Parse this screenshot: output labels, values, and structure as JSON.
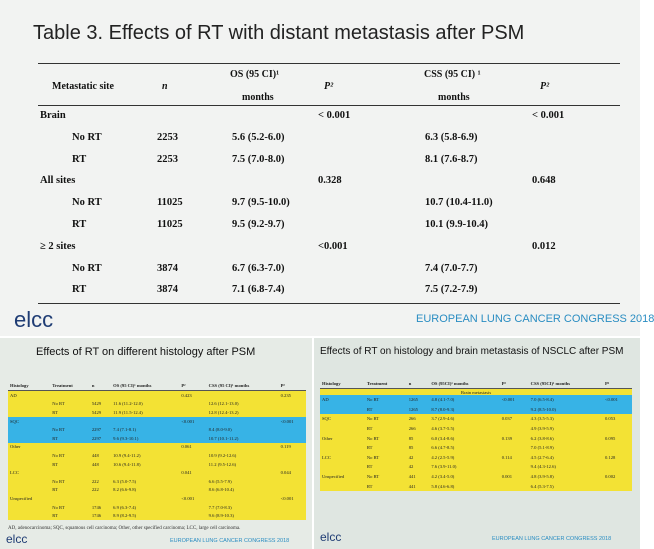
{
  "top": {
    "title": "Table 3. Effects of RT with distant metastasis after PSM",
    "headers": {
      "site": "Metastatic site",
      "n": "n",
      "os": "OS (95 CI)¹",
      "os_unit": "months",
      "p1": "P²",
      "css": "CSS (95 CI) ¹",
      "css_unit": "months",
      "p2": "P²"
    },
    "rows": [
      {
        "site": "Brain",
        "n": "",
        "os": "",
        "p1": "< 0.001",
        "css": "",
        "p2": "< 0.001"
      },
      {
        "site": "No RT",
        "n": "2253",
        "os": "5.6 (5.2-6.0)",
        "p1": "",
        "css": "6.3 (5.8-6.9)",
        "p2": ""
      },
      {
        "site": "RT",
        "n": "2253",
        "os": "7.5 (7.0-8.0)",
        "p1": "",
        "css": "8.1 (7.6-8.7)",
        "p2": ""
      },
      {
        "site": "All sites",
        "n": "",
        "os": "",
        "p1": "0.328",
        "css": "",
        "p2": "0.648"
      },
      {
        "site": "No RT",
        "n": "11025",
        "os": "9.7 (9.5-10.0)",
        "p1": "",
        "css": "10.7 (10.4-11.0)",
        "p2": ""
      },
      {
        "site": "RT",
        "n": "11025",
        "os": "9.5 (9.2-9.7)",
        "p1": "",
        "css": "10.1 (9.9-10.4)",
        "p2": ""
      },
      {
        "site": "≥ 2 sites",
        "n": "",
        "os": "",
        "p1": "<0.001",
        "css": "",
        "p2": "0.012"
      },
      {
        "site": "No RT",
        "n": "3874",
        "os": "6.7 (6.3-7.0)",
        "p1": "",
        "css": "7.4 (7.0-7.7)",
        "p2": ""
      },
      {
        "site": "RT",
        "n": "3874",
        "os": "7.1 (6.8-7.4)",
        "p1": "",
        "css": "7.5 (7.2-7.9)",
        "p2": ""
      }
    ],
    "logo": "elcc",
    "congress": "EUROPEAN LUNG CANCER CONGRESS 2018"
  },
  "bottom_left": {
    "title": "Effects of RT on different histology after PSM",
    "headers": [
      "Histology",
      "Treatment",
      "n",
      "OS (95 CI)¹ months",
      "P²",
      "CSS (95 CI)¹ months",
      "P²"
    ],
    "rows": [
      {
        "h": "AD",
        "t": "",
        "n": "",
        "os": "",
        "p1": "0.423",
        "css": "",
        "p2": "0.235",
        "band": "y"
      },
      {
        "h": "",
        "t": "No RT",
        "n": "5429",
        "os": "11.6 (11.2-12.0)",
        "p1": "",
        "css": "12.6 (12.1-13.0)",
        "p2": "",
        "band": "y"
      },
      {
        "h": "",
        "t": "RT",
        "n": "5429",
        "os": "11.9 (11.5-12.4)",
        "p1": "",
        "css": "12.8 (12.4-13.2)",
        "p2": "",
        "band": "y"
      },
      {
        "h": "SQC",
        "t": "",
        "n": "",
        "os": "",
        "p1": "<0.001",
        "css": "",
        "p2": "<0.001",
        "band": "b"
      },
      {
        "h": "",
        "t": "No RT",
        "n": "2297",
        "os": "7.4 (7.1-8.1)",
        "p1": "",
        "css": "8.4 (8.0-9.0)",
        "p2": "",
        "band": "b"
      },
      {
        "h": "",
        "t": "RT",
        "n": "2297",
        "os": "9.6 (9.3-10.1)",
        "p1": "",
        "css": "10.7 (10.1-11.2)",
        "p2": "",
        "band": "b"
      },
      {
        "h": "Other",
        "t": "",
        "n": "",
        "os": "",
        "p1": "0.061",
        "css": "",
        "p2": "0.119",
        "band": "y"
      },
      {
        "h": "",
        "t": "No RT",
        "n": "448",
        "os": "10.9 (9.4-11.2)",
        "p1": "",
        "css": "10.9 (9.2-12.6)",
        "p2": "",
        "band": "y"
      },
      {
        "h": "",
        "t": "RT",
        "n": "448",
        "os": "10.6 (9.4-11.8)",
        "p1": "",
        "css": "11.2 (9.5-12.6)",
        "p2": "",
        "band": "y"
      },
      {
        "h": "LCC",
        "t": "",
        "n": "",
        "os": "",
        "p1": "0.041",
        "css": "",
        "p2": "0.044",
        "band": "y"
      },
      {
        "h": "",
        "t": "No RT",
        "n": "222",
        "os": "6.3 (5.0-7.5)",
        "p1": "",
        "css": "6.6 (5.5-7.9)",
        "p2": "",
        "band": "y"
      },
      {
        "h": "",
        "t": "RT",
        "n": "222",
        "os": "8.2 (6.6-9.8)",
        "p1": "",
        "css": "8.6 (6.8-10.4)",
        "p2": "",
        "band": "y"
      },
      {
        "h": "Unspecified",
        "t": "",
        "n": "",
        "os": "",
        "p1": "<0.001",
        "css": "",
        "p2": "<0.001",
        "band": "y"
      },
      {
        "h": "",
        "t": "No RT",
        "n": "1746",
        "os": "6.9 (6.3-7.4)",
        "p1": "",
        "css": "7.7 (7.0-8.3)",
        "p2": "",
        "band": "y"
      },
      {
        "h": "",
        "t": "RT",
        "n": "1746",
        "os": "8.9 (8.2-9.5)",
        "p1": "",
        "css": "9.6 (8.9-10.3)",
        "p2": "",
        "band": "y"
      }
    ],
    "footnote": "AD, adenocarcinoma; SQC, squamous cell carcinoma; Other, other specified carcinoma; LCC, large cell carcinoma.",
    "logo": "elcc",
    "congress": "EUROPEAN LUNG CANCER CONGRESS 2018"
  },
  "bottom_right": {
    "title": "Effects of RT on histology and brain metastasis of NSCLC after PSM",
    "headers": [
      "Histology",
      "Treatment",
      "n",
      "OS (95CI)¹ months",
      "P²",
      "CSS (95CI)¹ months",
      "P²"
    ],
    "subheader": "Brain metastasis",
    "rows": [
      {
        "h": "AD",
        "t": "No RT",
        "n": "1265",
        "os": "4.8 (4.1-7.0)",
        "p1": "<0.001",
        "css": "7.0 (6.5-8.4)",
        "p2": "<0.001",
        "band": "b"
      },
      {
        "h": "",
        "t": "RT",
        "n": "1265",
        "os": "8.7 (8.0-9.3)",
        "p1": "",
        "css": "9.2 (8.5-10.0)",
        "p2": "",
        "band": "b"
      },
      {
        "h": "SQC",
        "t": "No RT",
        "n": "266",
        "os": "3.7 (2.9-4.6)",
        "p1": "0.037",
        "css": "4.3 (3.5-5.3)",
        "p2": "0.053",
        "band": "y"
      },
      {
        "h": "",
        "t": "RT",
        "n": "266",
        "os": "4.6 (3.7-5.5)",
        "p1": "",
        "css": "4.9 (3.9-5.9)",
        "p2": "",
        "band": "y"
      },
      {
        "h": "Other",
        "t": "No RT",
        "n": "85",
        "os": "6.0 (3.4-8.6)",
        "p1": "0.139",
        "css": "6.2 (3.8-8.6)",
        "p2": "0.095",
        "band": "y"
      },
      {
        "h": "",
        "t": "RT",
        "n": "85",
        "os": "6.6 (4.7-8.5)",
        "p1": "",
        "css": "7.0 (5.1-8.9)",
        "p2": "",
        "band": "y"
      },
      {
        "h": "LCC",
        "t": "No RT",
        "n": "42",
        "os": "4.2 (2.5-5.9)",
        "p1": "0.114",
        "css": "4.5 (2.7-6.4)",
        "p2": "0.128",
        "band": "y"
      },
      {
        "h": "",
        "t": "RT",
        "n": "42",
        "os": "7.6 (3.9-11.0)",
        "p1": "",
        "css": "9.4 (4.3-12.6)",
        "p2": "",
        "band": "y"
      },
      {
        "h": "Unspecified",
        "t": "No RT",
        "n": "441",
        "os": "4.2 (3.4-5.0)",
        "p1": "0.001",
        "css": "4.8 (3.9-5.8)",
        "p2": "0.002",
        "band": "y"
      },
      {
        "h": "",
        "t": "RT",
        "n": "441",
        "os": "5.8 (4.6-6.8)",
        "p1": "",
        "css": "6.4 (5.3-7.5)",
        "p2": "",
        "band": "y"
      }
    ],
    "logo": "elcc",
    "congress": "EUROPEAN LUNG CANCER CONGRESS 2018"
  }
}
